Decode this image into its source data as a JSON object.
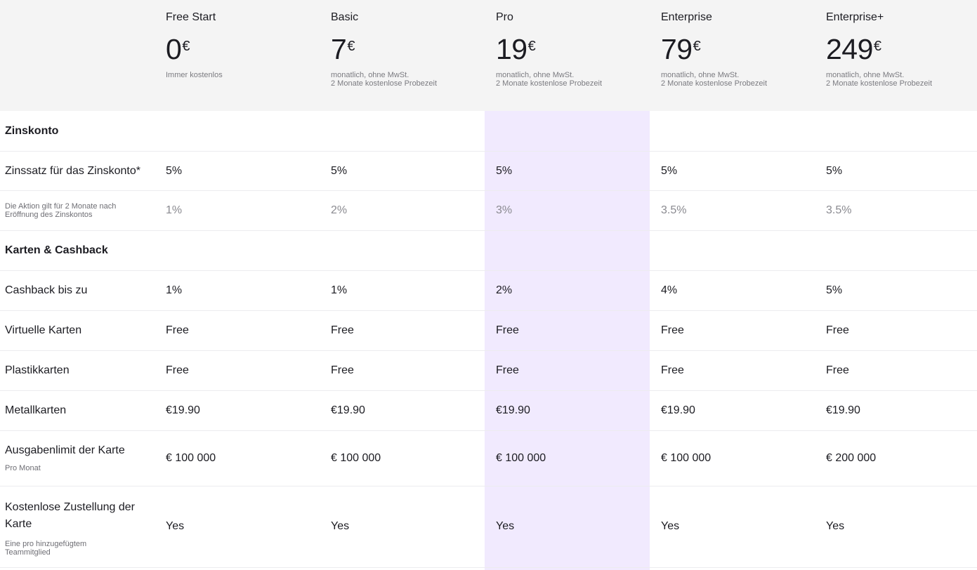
{
  "plans": [
    {
      "name": "Free Start",
      "price": "0",
      "currency": "€",
      "note_line1": "Immer kostenlos",
      "note_line2": ""
    },
    {
      "name": "Basic",
      "price": "7",
      "currency": "€",
      "note_line1": "monatlich, ohne MwSt.",
      "note_line2": "2 Monate kostenlose Probezeit"
    },
    {
      "name": "Pro",
      "price": "19",
      "currency": "€",
      "note_line1": "monatlich, ohne MwSt.",
      "note_line2": "2 Monate kostenlose Probezeit"
    },
    {
      "name": "Enterprise",
      "price": "79",
      "currency": "€",
      "note_line1": "monatlich, ohne MwSt.",
      "note_line2": "2 Monate kostenlose Probezeit"
    },
    {
      "name": "Enterprise+",
      "price": "249",
      "currency": "€",
      "note_line1": "monatlich, ohne MwSt.",
      "note_line2": "2 Monate kostenlose Probezeit"
    }
  ],
  "sections": {
    "zinskonto": "Zinskonto",
    "karten": "Karten & Cashback"
  },
  "rows": {
    "zinssatz": {
      "label": "Zinssatz für das Zinskonto*",
      "values": [
        "5%",
        "5%",
        "5%",
        "5%",
        "5%"
      ]
    },
    "aktion": {
      "label": "Die Aktion gilt für 2 Monate nach Eröffnung des Zinskontos",
      "values": [
        "1%",
        "2%",
        "3%",
        "3.5%",
        "3.5%"
      ]
    },
    "cashback": {
      "label": "Cashback bis zu",
      "values": [
        "1%",
        "1%",
        "2%",
        "4%",
        "5%"
      ]
    },
    "virtuelle": {
      "label": "Virtuelle Karten",
      "values": [
        "Free",
        "Free",
        "Free",
        "Free",
        "Free"
      ]
    },
    "plastik": {
      "label": "Plastikkarten",
      "values": [
        "Free",
        "Free",
        "Free",
        "Free",
        "Free"
      ]
    },
    "metall": {
      "label": "Metallkarten",
      "values": [
        "€19.90",
        "€19.90",
        "€19.90",
        "€19.90",
        "€19.90"
      ]
    },
    "limit": {
      "label": "Ausgabenlimit der Karte",
      "sublabel": "Pro Monat",
      "values": [
        "€ 100 000",
        "€ 100 000",
        "€ 100 000",
        "€ 100 000",
        "€ 200 000"
      ]
    },
    "zustellung": {
      "label_line1": "Kostenlose Zustellung der",
      "label_line2": "Karte",
      "sublabel_line1": "Eine pro hinzugefügtem",
      "sublabel_line2": "Teammitglied",
      "values": [
        "Yes",
        "Yes",
        "Yes",
        "Yes",
        "Yes"
      ]
    }
  },
  "colors": {
    "header_bg": "#f4f4f4",
    "highlight": "#f1eafe",
    "text": "#1c1c22",
    "muted": "#8a8a90"
  }
}
